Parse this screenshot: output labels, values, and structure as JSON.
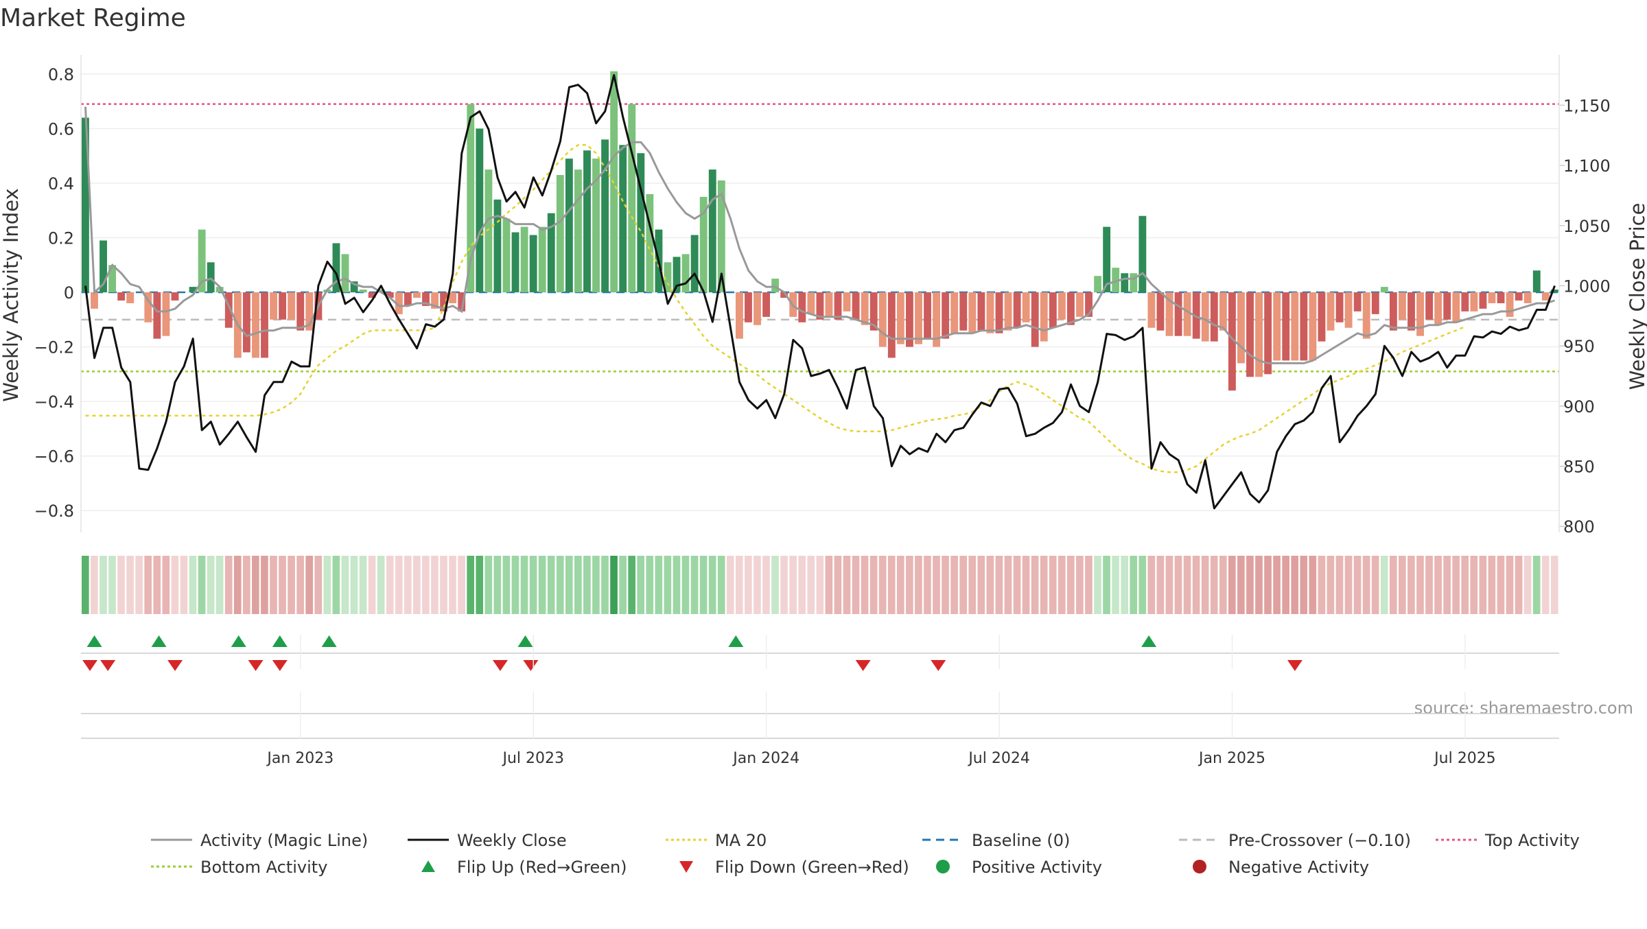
{
  "chart_data": {
    "title": "Market Regime",
    "type": "bar",
    "left_axis_label": "Weekly Activity Index",
    "right_axis_label": "Weekly Close Price",
    "left_ylim": [
      -0.88,
      0.84
    ],
    "right_ylim": [
      795,
      1185
    ],
    "left_ticks": [
      {
        "v": 0.8,
        "label": "0.8"
      },
      {
        "v": 0.6,
        "label": "0.6"
      },
      {
        "v": 0.4,
        "label": "0.4"
      },
      {
        "v": 0.2,
        "label": "0.2"
      },
      {
        "v": 0,
        "label": "0"
      },
      {
        "v": -0.2,
        "label": "−0.2"
      },
      {
        "v": -0.4,
        "label": "−0.4"
      },
      {
        "v": -0.6,
        "label": "−0.6"
      },
      {
        "v": -0.8,
        "label": "−0.8"
      }
    ],
    "right_ticks": [
      {
        "v": 1150,
        "label": "1,150"
      },
      {
        "v": 1100,
        "label": "1,100"
      },
      {
        "v": 1050,
        "label": "1,050"
      },
      {
        "v": 1000,
        "label": "1,000"
      },
      {
        "v": 950,
        "label": "950"
      },
      {
        "v": 900,
        "label": "900"
      },
      {
        "v": 850,
        "label": "850"
      },
      {
        "v": 800,
        "label": "800"
      }
    ],
    "x_ticks": [
      {
        "w": 24.5,
        "label": "Jan 2023"
      },
      {
        "w": 50.5,
        "label": "Jul 2023"
      },
      {
        "w": 76.5,
        "label": "Jan 2024"
      },
      {
        "w": 102.5,
        "label": "Jul 2024"
      },
      {
        "w": 128.5,
        "label": "Jan 2025"
      },
      {
        "w": 154.5,
        "label": "Jul 2025"
      }
    ],
    "reference_lines": {
      "top_activity": 0.69,
      "bottom_activity": -0.29,
      "baseline": 0,
      "pre_crossover": -0.1
    },
    "activity_weekly": [
      0.64,
      -0.06,
      0.19,
      0.1,
      -0.03,
      -0.04,
      0,
      -0.11,
      -0.17,
      -0.16,
      -0.03,
      0,
      0.02,
      0.23,
      0.11,
      0.02,
      -0.13,
      -0.24,
      -0.22,
      -0.24,
      -0.24,
      -0.1,
      -0.1,
      -0.1,
      -0.14,
      -0.14,
      -0.1,
      0.01,
      0.18,
      0.14,
      0.04,
      0.01,
      -0.02,
      0.01,
      -0.02,
      -0.08,
      -0.05,
      -0.02,
      -0.05,
      -0.06,
      -0.07,
      -0.04,
      -0.07,
      0.69,
      0.6,
      0.45,
      0.34,
      0.27,
      0.22,
      0.24,
      0.21,
      0.24,
      0.29,
      0.43,
      0.49,
      0.45,
      0.52,
      0.49,
      0.56,
      0.81,
      0.54,
      0.69,
      0.51,
      0.36,
      0.23,
      0.11,
      0.13,
      0.14,
      0.21,
      0.35,
      0.45,
      0.41,
      0.0,
      -0.17,
      -0.11,
      -0.12,
      -0.09,
      0.05,
      -0.02,
      -0.09,
      -0.11,
      -0.08,
      -0.1,
      -0.09,
      -0.1,
      -0.07,
      -0.1,
      -0.12,
      -0.14,
      -0.2,
      -0.24,
      -0.19,
      -0.2,
      -0.19,
      -0.17,
      -0.2,
      -0.17,
      -0.15,
      -0.14,
      -0.15,
      -0.14,
      -0.15,
      -0.15,
      -0.14,
      -0.13,
      -0.11,
      -0.2,
      -0.18,
      -0.13,
      -0.1,
      -0.12,
      -0.09,
      -0.09,
      0.06,
      0.24,
      0.09,
      0.07,
      0.07,
      0.28,
      -0.13,
      -0.14,
      -0.16,
      -0.16,
      -0.16,
      -0.17,
      -0.18,
      -0.18,
      -0.14,
      -0.36,
      -0.26,
      -0.31,
      -0.31,
      -0.3,
      -0.25,
      -0.25,
      -0.25,
      -0.25,
      -0.25,
      -0.18,
      -0.14,
      -0.11,
      -0.13,
      -0.07,
      -0.17,
      -0.08,
      0.02,
      -0.14,
      -0.1,
      -0.14,
      -0.16,
      -0.1,
      -0.12,
      -0.1,
      -0.11,
      -0.07,
      -0.07,
      -0.06,
      -0.04,
      -0.04,
      -0.09,
      -0.03,
      -0.04,
      0.08,
      -0.03,
      0.01
    ],
    "magic_line": [
      0.68,
      0.0,
      0.03,
      0.1,
      0.07,
      0.03,
      0.02,
      -0.03,
      -0.07,
      -0.07,
      -0.06,
      -0.03,
      -0.01,
      0.04,
      0.05,
      0.02,
      -0.05,
      -0.12,
      -0.16,
      -0.15,
      -0.14,
      -0.14,
      -0.13,
      -0.13,
      -0.13,
      -0.12,
      -0.05,
      0.01,
      0.04,
      0.05,
      0.03,
      0.02,
      0.02,
      0.0,
      -0.02,
      -0.05,
      -0.05,
      -0.04,
      -0.04,
      -0.05,
      -0.06,
      -0.05,
      -0.07,
      0.12,
      0.22,
      0.27,
      0.28,
      0.27,
      0.25,
      0.25,
      0.25,
      0.23,
      0.24,
      0.26,
      0.3,
      0.34,
      0.38,
      0.41,
      0.45,
      0.5,
      0.53,
      0.55,
      0.55,
      0.51,
      0.44,
      0.38,
      0.33,
      0.29,
      0.27,
      0.29,
      0.34,
      0.36,
      0.27,
      0.16,
      0.08,
      0.04,
      0.02,
      0.02,
      0.0,
      -0.05,
      -0.07,
      -0.08,
      -0.09,
      -0.09,
      -0.09,
      -0.09,
      -0.1,
      -0.11,
      -0.12,
      -0.15,
      -0.17,
      -0.17,
      -0.17,
      -0.17,
      -0.17,
      -0.17,
      -0.16,
      -0.15,
      -0.15,
      -0.15,
      -0.14,
      -0.14,
      -0.14,
      -0.13,
      -0.13,
      -0.12,
      -0.13,
      -0.14,
      -0.13,
      -0.12,
      -0.11,
      -0.1,
      -0.08,
      -0.03,
      0.03,
      0.04,
      0.05,
      0.05,
      0.07,
      0.03,
      0.0,
      -0.03,
      -0.05,
      -0.07,
      -0.09,
      -0.1,
      -0.12,
      -0.13,
      -0.17,
      -0.2,
      -0.23,
      -0.25,
      -0.26,
      -0.26,
      -0.26,
      -0.26,
      -0.26,
      -0.25,
      -0.23,
      -0.21,
      -0.19,
      -0.17,
      -0.15,
      -0.16,
      -0.15,
      -0.12,
      -0.13,
      -0.13,
      -0.13,
      -0.13,
      -0.12,
      -0.12,
      -0.11,
      -0.11,
      -0.1,
      -0.09,
      -0.08,
      -0.08,
      -0.07,
      -0.07,
      -0.06,
      -0.05,
      -0.04,
      -0.04,
      -0.03
    ],
    "weekly_close": [
      1000,
      940,
      965,
      965,
      932,
      920,
      848,
      847,
      865,
      887,
      920,
      933,
      956,
      880,
      887,
      868,
      877,
      887,
      874,
      862,
      909,
      920,
      920,
      937,
      933,
      933,
      1000,
      1020,
      1010,
      985,
      990,
      978,
      988,
      1000,
      985,
      972,
      960,
      948,
      968,
      966,
      972,
      1010,
      1110,
      1140,
      1145,
      1130,
      1090,
      1070,
      1078,
      1065,
      1090,
      1075,
      1096,
      1120,
      1165,
      1167,
      1160,
      1135,
      1145,
      1175,
      1140,
      1110,
      1080,
      1050,
      1020,
      985,
      1000,
      1002,
      1010,
      995,
      970,
      1010,
      965,
      920,
      905,
      898,
      905,
      890,
      910,
      955,
      948,
      925,
      927,
      930,
      915,
      898,
      930,
      932,
      900,
      890,
      850,
      867,
      860,
      865,
      862,
      877,
      870,
      880,
      882,
      893,
      903,
      900,
      914,
      915,
      902,
      875,
      877,
      882,
      886,
      895,
      918,
      900,
      895,
      920,
      960,
      959,
      955,
      958,
      965,
      848,
      870,
      860,
      855,
      835,
      828,
      855,
      815,
      825,
      835,
      845,
      827,
      820,
      830,
      862,
      875,
      885,
      888,
      895,
      915,
      925,
      870,
      880,
      892,
      900,
      910,
      950,
      940,
      925,
      945,
      937,
      940,
      945,
      932,
      942,
      942,
      958,
      957,
      962,
      960,
      966,
      963,
      965,
      980,
      980,
      1000
    ],
    "ma20": [
      892,
      892,
      892,
      892,
      892,
      892,
      892,
      892,
      892,
      892,
      892,
      892,
      892,
      892,
      892,
      892,
      892,
      892,
      892,
      892,
      893,
      895,
      898,
      903,
      910,
      923,
      934,
      940,
      946,
      950,
      955,
      960,
      963,
      963,
      963,
      963,
      963,
      963,
      963,
      965,
      982,
      1003,
      1020,
      1033,
      1041,
      1047,
      1053,
      1060,
      1066,
      1073,
      1080,
      1088,
      1096,
      1104,
      1112,
      1117,
      1117,
      1110,
      1098,
      1085,
      1070,
      1057,
      1045,
      1030,
      1016,
      1002,
      989,
      978,
      968,
      958,
      950,
      945,
      940,
      935,
      930,
      926,
      920,
      915,
      910,
      905,
      900,
      895,
      890,
      886,
      882,
      880,
      879,
      879,
      879,
      879,
      880,
      882,
      884,
      886,
      888,
      889,
      890,
      892,
      893,
      895,
      900,
      905,
      912,
      917,
      920,
      918,
      915,
      910,
      905,
      900,
      895,
      890,
      887,
      880,
      873,
      866,
      860,
      855,
      852,
      848,
      846,
      845,
      845,
      847,
      850,
      856,
      862,
      868,
      872,
      875,
      877,
      880,
      885,
      890,
      895,
      900,
      905,
      910,
      915,
      919,
      922,
      925,
      928,
      931,
      934,
      937,
      941,
      945,
      948,
      951,
      954,
      957,
      960,
      963,
      966
    ],
    "regime_strip": [
      "g3",
      "r1",
      "g1",
      "g1",
      "r1",
      "r1",
      "r1",
      "r2",
      "r2",
      "r2",
      "r1",
      "r1",
      "g1",
      "g2",
      "g1",
      "g1",
      "r2",
      "r3",
      "r2",
      "r3",
      "r3",
      "r2",
      "r2",
      "r2",
      "r2",
      "r3",
      "r2",
      "g1",
      "g2",
      "g1",
      "g1",
      "g1",
      "r1",
      "g1",
      "r1",
      "r1",
      "r1",
      "r1",
      "r1",
      "r1",
      "r1",
      "r1",
      "r1",
      "g3",
      "g3",
      "g2",
      "g2",
      "g2",
      "g2",
      "g2",
      "g2",
      "g2",
      "g2",
      "g2",
      "g2",
      "g2",
      "g2",
      "g2",
      "g2",
      "g4",
      "g2",
      "g3",
      "g2",
      "g2",
      "g2",
      "g2",
      "g2",
      "g2",
      "g2",
      "g2",
      "g2",
      "g2",
      "r1",
      "r1",
      "r1",
      "r1",
      "r1",
      "g1",
      "r1",
      "r1",
      "r1",
      "r1",
      "r1",
      "r2",
      "r2",
      "r2",
      "r2",
      "r2",
      "r2",
      "r2",
      "r2",
      "r2",
      "r2",
      "r2",
      "r2",
      "r2",
      "r2",
      "r2",
      "r2",
      "r2",
      "r2",
      "r2",
      "r2",
      "r2",
      "r2",
      "r2",
      "r2",
      "r2",
      "r2",
      "r2",
      "r2",
      "r2",
      "r2",
      "g1",
      "g2",
      "g1",
      "g1",
      "g2",
      "g2",
      "r2",
      "r2",
      "r2",
      "r2",
      "r2",
      "r2",
      "r2",
      "r2",
      "r2",
      "r3",
      "r3",
      "r3",
      "r3",
      "r3",
      "r3",
      "r3",
      "r3",
      "r3",
      "r3",
      "r2",
      "r2",
      "r2",
      "r2",
      "r2",
      "r2",
      "r2",
      "g1",
      "r2",
      "r2",
      "r2",
      "r2",
      "r2",
      "r2",
      "r2",
      "r2",
      "r2",
      "r2",
      "r2",
      "r2",
      "r2",
      "r2",
      "r2",
      "r1",
      "g2",
      "r1",
      "r1"
    ],
    "flip_up_weeks": [
      1.5,
      8.7,
      17.6,
      22.2,
      27.7,
      49.6,
      73.1,
      119.2
    ],
    "flip_down_weeks": [
      1,
      3,
      10.5,
      19.5,
      22.2,
      46.8,
      50.2,
      87.3,
      95.7,
      135.5
    ],
    "colors": {
      "green_dark": "#2e8b57",
      "green_light": "#7cc27c",
      "red_dark": "#cd5c5c",
      "red_light": "#e9967a",
      "magic_line": "#999999",
      "weekly_close": "#111111",
      "ma20": "#e6d22e",
      "baseline": "#1f77b4",
      "pre_crossover": "#bbbbbb",
      "top_activity": "#e75480",
      "bottom_activity": "#9acd32",
      "flip_up": "#1f9e4a",
      "flip_down": "#d62728"
    },
    "source": "source: sharemaestro.com",
    "legend": [
      {
        "label": "Activity (Magic Line)",
        "kind": "line",
        "color": "#999999",
        "dash": ""
      },
      {
        "label": "Weekly Close",
        "kind": "line",
        "color": "#111111",
        "dash": ""
      },
      {
        "label": "MA 20",
        "kind": "line",
        "color": "#e6d22e",
        "dash": "4,4"
      },
      {
        "label": "Baseline (0)",
        "kind": "line",
        "color": "#1f77b4",
        "dash": "12,8"
      },
      {
        "label": "Pre-Crossover (−0.10)",
        "kind": "line",
        "color": "#bbbbbb",
        "dash": "12,8"
      },
      {
        "label": "Top Activity",
        "kind": "line",
        "color": "#e75480",
        "dash": "4,4"
      },
      {
        "label": "Bottom Activity",
        "kind": "line",
        "color": "#9acd32",
        "dash": "4,4"
      },
      {
        "label": "Flip Up (Red→Green)",
        "kind": "tri-up",
        "color": "#1f9e4a",
        "dash": ""
      },
      {
        "label": "Flip Down (Green→Red)",
        "kind": "tri-down",
        "color": "#d62728",
        "dash": ""
      },
      {
        "label": "Positive Activity",
        "kind": "dot",
        "color": "#1f9e4a",
        "dash": ""
      },
      {
        "label": "Negative Activity",
        "kind": "dot",
        "color": "#b22222",
        "dash": ""
      }
    ]
  }
}
